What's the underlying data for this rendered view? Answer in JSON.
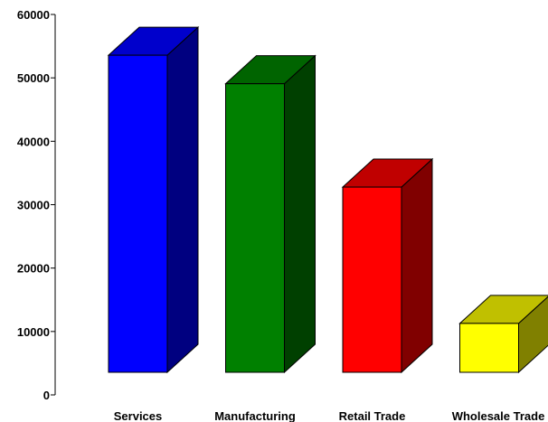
{
  "chart_data": {
    "type": "bar",
    "style": "3d",
    "categories": [
      "Services",
      "Manufacturing",
      "Retail Trade",
      "Wholesale Trade"
    ],
    "values": [
      54000,
      49500,
      33200,
      11700
    ],
    "ylim": [
      0,
      60000
    ],
    "yticks": [
      "0",
      "10000",
      "20000",
      "30000",
      "40000",
      "50000",
      "60000"
    ],
    "grid": false,
    "legend": "none",
    "colors": [
      {
        "front": "#0000ff",
        "side": "#000080",
        "top": "#0000cc"
      },
      {
        "front": "#008000",
        "side": "#004000",
        "top": "#006400"
      },
      {
        "front": "#ff0000",
        "side": "#800000",
        "top": "#c00000"
      },
      {
        "front": "#ffff00",
        "side": "#808000",
        "top": "#c0c000"
      }
    ]
  }
}
